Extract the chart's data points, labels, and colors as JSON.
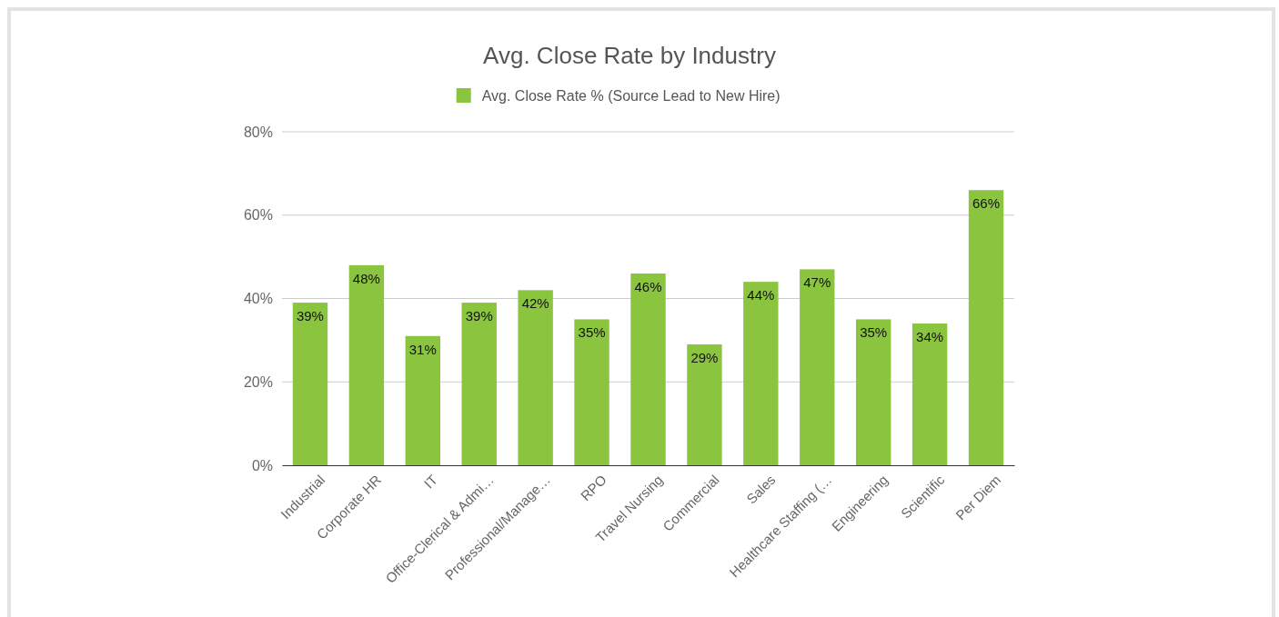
{
  "chart_data": {
    "type": "bar",
    "title": "Avg. Close Rate by Industry",
    "categories": [
      "Industrial",
      "Corporate HR",
      "IT",
      "Office-Clerical & Admi…",
      "Professional/Manage…",
      "RPO",
      "Travel Nursing",
      "Commercial",
      "Sales",
      "Healthcare Staffing (…",
      "Engineering",
      "Scientific",
      "Per Diem"
    ],
    "series": [
      {
        "name": "Avg. Close Rate % (Source Lead to New Hire)",
        "color": "#8bc53f",
        "values": [
          39,
          48,
          31,
          39,
          42,
          35,
          46,
          29,
          44,
          47,
          35,
          34,
          66
        ],
        "value_labels": [
          "39%",
          "48%",
          "31%",
          "39%",
          "42%",
          "35%",
          "46%",
          "29%",
          "44%",
          "47%",
          "35%",
          "34%",
          "66%"
        ]
      }
    ],
    "ylim": [
      0,
      80
    ],
    "yticks": [
      {
        "value": 0,
        "label": "0%"
      },
      {
        "value": 20,
        "label": "20%"
      },
      {
        "value": 40,
        "label": "40%"
      },
      {
        "value": 60,
        "label": "60%"
      },
      {
        "value": 80,
        "label": "80%"
      }
    ],
    "grid": "y",
    "legend": "top"
  }
}
